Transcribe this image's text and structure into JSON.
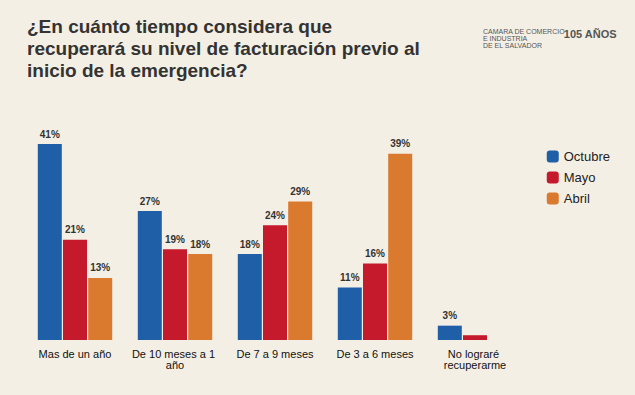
{
  "chart_data": {
    "type": "bar",
    "title": "¿En cuánto tiempo considera que\nrecuperará su nivel de facturación previo al\ninicio de la emergencia?",
    "annotations": [
      "CAMARA DE COMERCIO E INDUSTRIA DE EL SALVADOR",
      "105 AÑOS"
    ],
    "categories": [
      "Mas de un año",
      "De 10 meses a 1 año",
      "De 7 a 9 meses",
      "De 3 a 6 meses",
      "No lograré recuperarme"
    ],
    "series": [
      {
        "name": "Octubre",
        "color": "#1f5fa8",
        "values": [
          41,
          27,
          18,
          11,
          3
        ],
        "value_labels": [
          "41%",
          "27%",
          "18%",
          "11%",
          "3%"
        ]
      },
      {
        "name": "Mayo",
        "color": "#c41a2c",
        "values": [
          21,
          19,
          24,
          16,
          1
        ],
        "value_labels": [
          "21%",
          "19%",
          "24%",
          "16%",
          null
        ]
      },
      {
        "name": "Abril",
        "color": "#d97a2e",
        "values": [
          13,
          18,
          29,
          39,
          null
        ],
        "value_labels": [
          "13%",
          "18%",
          "29%",
          "39%",
          null
        ]
      }
    ],
    "ylim": [
      0,
      45
    ],
    "grid": false,
    "legend": "right",
    "data_labels": true,
    "tick_labels": "x"
  }
}
